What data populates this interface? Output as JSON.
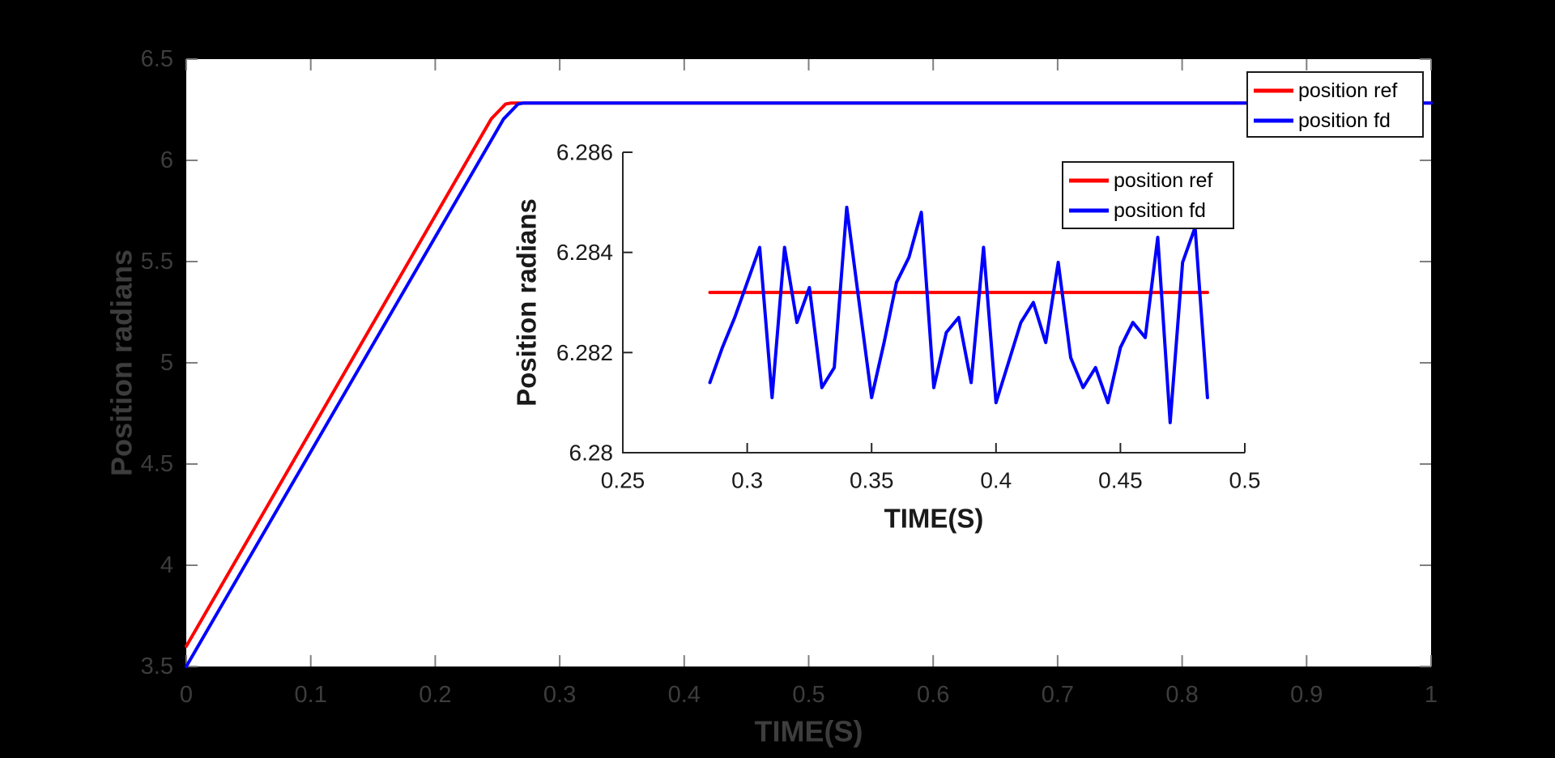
{
  "figure": {
    "background": "#000000",
    "plot_background": "#ffffff",
    "colors": {
      "ref": "#ff0000",
      "fd": "#0000ff",
      "main_tick": "#7f7f7f",
      "main_text": "#3d3d3d",
      "inset_axis": "#262626",
      "inset_text": "#1a1a1a",
      "legend_border": "#1a1a1a",
      "legend_background": "#ffffff"
    }
  },
  "chart_data": [
    {
      "id": "main",
      "type": "line",
      "title": "",
      "xlabel": "TIME(S)",
      "ylabel": "Position radians",
      "xlim": [
        0,
        1
      ],
      "ylim": [
        3.5,
        6.5
      ],
      "grid": false,
      "xticks": [
        0,
        0.1,
        0.2,
        0.3,
        0.4,
        0.5,
        0.6,
        0.7,
        0.8,
        0.9,
        1
      ],
      "xtick_labels": [
        "0",
        "0.1",
        "0.2",
        "0.3",
        "0.4",
        "0.5",
        "0.6",
        "0.7",
        "0.8",
        "0.9",
        "1"
      ],
      "yticks": [
        3.5,
        4,
        4.5,
        5,
        5.5,
        6,
        6.5
      ],
      "ytick_labels": [
        "3.5",
        "4",
        "4.5",
        "5",
        "5.5",
        "6",
        "6.5"
      ],
      "legend": {
        "position": "top-right",
        "entries": [
          "position ref",
          "position fd"
        ]
      },
      "series": [
        {
          "name": "position ref",
          "color_key": "ref",
          "x": [
            0,
            0.245,
            0.2565,
            0.261,
            1.0
          ],
          "y": [
            3.6,
            6.205,
            6.278,
            6.2832,
            6.2832
          ]
        },
        {
          "name": "position fd",
          "color_key": "fd",
          "x": [
            0,
            0.255,
            0.2665,
            0.271,
            1.0
          ],
          "y": [
            3.5,
            6.205,
            6.278,
            6.2832,
            6.2832
          ]
        }
      ]
    },
    {
      "id": "inset",
      "type": "line",
      "title": "",
      "xlabel": "TIME(S)",
      "ylabel": "Position radians",
      "xlim": [
        0.25,
        0.5
      ],
      "ylim": [
        6.28,
        6.286
      ],
      "grid": false,
      "xticks": [
        0.25,
        0.3,
        0.35,
        0.4,
        0.45,
        0.5
      ],
      "xtick_labels": [
        "0.25",
        "0.3",
        "0.35",
        "0.4",
        "0.45",
        "0.5"
      ],
      "yticks": [
        6.28,
        6.282,
        6.284,
        6.286
      ],
      "ytick_labels": [
        "6.28",
        "6.282",
        "6.284",
        "6.286"
      ],
      "legend": {
        "position": "top-right",
        "entries": [
          "position ref",
          "position fd"
        ]
      },
      "series": [
        {
          "name": "position ref",
          "color_key": "ref",
          "x": [
            0.285,
            0.485
          ],
          "y": [
            6.2832,
            6.2832
          ]
        },
        {
          "name": "position fd",
          "color_key": "fd",
          "x": [
            0.285,
            0.29,
            0.295,
            0.3,
            0.305,
            0.31,
            0.315,
            0.32,
            0.325,
            0.33,
            0.335,
            0.34,
            0.345,
            0.35,
            0.355,
            0.36,
            0.365,
            0.37,
            0.375,
            0.38,
            0.385,
            0.39,
            0.395,
            0.4,
            0.405,
            0.41,
            0.415,
            0.42,
            0.425,
            0.43,
            0.435,
            0.44,
            0.445,
            0.45,
            0.455,
            0.46,
            0.465,
            0.47,
            0.475,
            0.48,
            0.485
          ],
          "y": [
            6.2814,
            6.2821,
            6.2827,
            6.2834,
            6.2841,
            6.2811,
            6.2841,
            6.2826,
            6.2833,
            6.2813,
            6.2817,
            6.2849,
            6.283,
            6.2811,
            6.2822,
            6.2834,
            6.2839,
            6.2848,
            6.2813,
            6.2824,
            6.2827,
            6.2814,
            6.2841,
            6.281,
            6.2818,
            6.2826,
            6.283,
            6.2822,
            6.2838,
            6.2819,
            6.2813,
            6.2817,
            6.281,
            6.2821,
            6.2826,
            6.2823,
            6.2843,
            6.2806,
            6.2838,
            6.2845,
            6.2811
          ]
        }
      ]
    }
  ]
}
